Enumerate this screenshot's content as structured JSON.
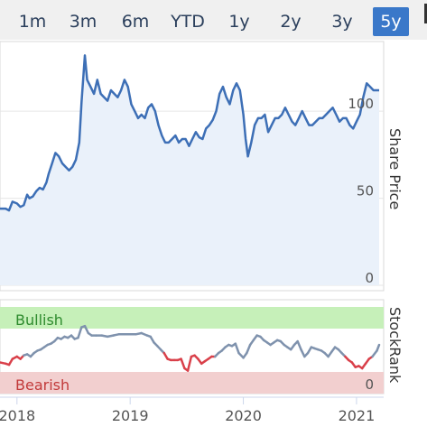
{
  "range_selector": {
    "buttons": [
      "1m",
      "3m",
      "6m",
      "YTD",
      "1y",
      "2y",
      "3y",
      "5y"
    ],
    "active": "5y"
  },
  "chart_data": [
    {
      "type": "line",
      "title": "",
      "ylabel": "Share Price",
      "ylim": [
        0,
        140
      ],
      "yticks": [
        0,
        50,
        100
      ],
      "xlim": [
        2017.85,
        2021.2
      ],
      "grid": true,
      "series": [
        {
          "color": "#3d6fb6",
          "points": [
            [
              2017.85,
              44
            ],
            [
              2017.9,
              44
            ],
            [
              2017.93,
              43
            ],
            [
              2017.96,
              48
            ],
            [
              2018.0,
              47
            ],
            [
              2018.03,
              45
            ],
            [
              2018.06,
              46
            ],
            [
              2018.09,
              52
            ],
            [
              2018.11,
              50
            ],
            [
              2018.14,
              51
            ],
            [
              2018.17,
              54
            ],
            [
              2018.2,
              56
            ],
            [
              2018.23,
              55
            ],
            [
              2018.26,
              59
            ],
            [
              2018.28,
              64
            ],
            [
              2018.31,
              70
            ],
            [
              2018.34,
              76
            ],
            [
              2018.37,
              74
            ],
            [
              2018.4,
              70
            ],
            [
              2018.43,
              68
            ],
            [
              2018.46,
              66
            ],
            [
              2018.49,
              68
            ],
            [
              2018.52,
              72
            ],
            [
              2018.55,
              82
            ],
            [
              2018.57,
              105
            ],
            [
              2018.6,
              132
            ],
            [
              2018.62,
              118
            ],
            [
              2018.65,
              114
            ],
            [
              2018.68,
              110
            ],
            [
              2018.71,
              118
            ],
            [
              2018.74,
              110
            ],
            [
              2018.77,
              108
            ],
            [
              2018.8,
              106
            ],
            [
              2018.83,
              112
            ],
            [
              2018.86,
              110
            ],
            [
              2018.89,
              108
            ],
            [
              2018.92,
              112
            ],
            [
              2018.95,
              118
            ],
            [
              2018.98,
              114
            ],
            [
              2019.01,
              104
            ],
            [
              2019.04,
              100
            ],
            [
              2019.07,
              96
            ],
            [
              2019.1,
              98
            ],
            [
              2019.13,
              96
            ],
            [
              2019.16,
              102
            ],
            [
              2019.19,
              104
            ],
            [
              2019.22,
              100
            ],
            [
              2019.25,
              92
            ],
            [
              2019.28,
              86
            ],
            [
              2019.31,
              82
            ],
            [
              2019.34,
              82
            ],
            [
              2019.37,
              84
            ],
            [
              2019.4,
              86
            ],
            [
              2019.43,
              82
            ],
            [
              2019.46,
              84
            ],
            [
              2019.49,
              84
            ],
            [
              2019.52,
              80
            ],
            [
              2019.55,
              84
            ],
            [
              2019.58,
              88
            ],
            [
              2019.61,
              85
            ],
            [
              2019.64,
              84
            ],
            [
              2019.67,
              90
            ],
            [
              2019.7,
              92
            ],
            [
              2019.73,
              95
            ],
            [
              2019.76,
              100
            ],
            [
              2019.79,
              110
            ],
            [
              2019.82,
              114
            ],
            [
              2019.85,
              108
            ],
            [
              2019.88,
              104
            ],
            [
              2019.91,
              112
            ],
            [
              2019.94,
              116
            ],
            [
              2019.97,
              112
            ],
            [
              2020.0,
              98
            ],
            [
              2020.02,
              84
            ],
            [
              2020.04,
              74
            ],
            [
              2020.07,
              82
            ],
            [
              2020.1,
              92
            ],
            [
              2020.13,
              96
            ],
            [
              2020.16,
              96
            ],
            [
              2020.19,
              98
            ],
            [
              2020.22,
              88
            ],
            [
              2020.25,
              92
            ],
            [
              2020.28,
              96
            ],
            [
              2020.31,
              96
            ],
            [
              2020.34,
              98
            ],
            [
              2020.37,
              102
            ],
            [
              2020.4,
              98
            ],
            [
              2020.43,
              94
            ],
            [
              2020.46,
              92
            ],
            [
              2020.49,
              96
            ],
            [
              2020.52,
              100
            ],
            [
              2020.55,
              96
            ],
            [
              2020.58,
              92
            ],
            [
              2020.61,
              92
            ],
            [
              2020.64,
              94
            ],
            [
              2020.67,
              96
            ],
            [
              2020.7,
              96
            ],
            [
              2020.73,
              98
            ],
            [
              2020.76,
              100
            ],
            [
              2020.79,
              102
            ],
            [
              2020.82,
              98
            ],
            [
              2020.85,
              94
            ],
            [
              2020.88,
              96
            ],
            [
              2020.91,
              96
            ],
            [
              2020.94,
              92
            ],
            [
              2020.97,
              90
            ],
            [
              2021.0,
              94
            ],
            [
              2021.03,
              98
            ],
            [
              2021.06,
              108
            ],
            [
              2021.09,
              116
            ],
            [
              2021.12,
              114
            ],
            [
              2021.15,
              112
            ],
            [
              2021.2,
              112
            ]
          ]
        }
      ]
    },
    {
      "type": "line",
      "title": "",
      "ylabel": "StockRank",
      "ylim": [
        0,
        100
      ],
      "yticks": [
        0
      ],
      "xlim": [
        2017.85,
        2021.2
      ],
      "xticks": [
        "2018",
        "2019",
        "2020",
        "2021"
      ],
      "bands": [
        {
          "label": "Bullish",
          "range": [
            70,
            100
          ],
          "color": "#c6f0b9",
          "label_color": "#2e8b2e"
        },
        {
          "label": "Bearish",
          "range": [
            0,
            30
          ],
          "color": "#f2cfcf",
          "label_color": "#c23a3a"
        }
      ],
      "series": [
        {
          "points": [
            [
              2017.85,
              25
            ],
            [
              2017.9,
              24
            ],
            [
              2017.93,
              23
            ],
            [
              2017.96,
              28
            ],
            [
              2018.0,
              30
            ],
            [
              2018.03,
              28
            ],
            [
              2018.06,
              31
            ],
            [
              2018.09,
              32
            ],
            [
              2018.12,
              30
            ],
            [
              2018.15,
              33
            ],
            [
              2018.18,
              35
            ],
            [
              2018.21,
              36
            ],
            [
              2018.24,
              38
            ],
            [
              2018.27,
              40
            ],
            [
              2018.3,
              41
            ],
            [
              2018.33,
              43
            ],
            [
              2018.36,
              46
            ],
            [
              2018.39,
              45
            ],
            [
              2018.42,
              47
            ],
            [
              2018.45,
              46
            ],
            [
              2018.48,
              48
            ],
            [
              2018.51,
              45
            ],
            [
              2018.54,
              46
            ],
            [
              2018.57,
              55
            ],
            [
              2018.6,
              56
            ],
            [
              2018.63,
              50
            ],
            [
              2018.66,
              48
            ],
            [
              2018.7,
              48
            ],
            [
              2018.75,
              48
            ],
            [
              2018.8,
              47
            ],
            [
              2018.85,
              48
            ],
            [
              2018.9,
              49
            ],
            [
              2018.95,
              49
            ],
            [
              2019.0,
              49
            ],
            [
              2019.05,
              49
            ],
            [
              2019.1,
              50
            ],
            [
              2019.15,
              48
            ],
            [
              2019.18,
              47
            ],
            [
              2019.21,
              42
            ],
            [
              2019.24,
              39
            ],
            [
              2019.27,
              36
            ],
            [
              2019.3,
              33
            ],
            [
              2019.33,
              28
            ],
            [
              2019.36,
              27
            ],
            [
              2019.39,
              27
            ],
            [
              2019.42,
              27
            ],
            [
              2019.45,
              28
            ],
            [
              2019.48,
              20
            ],
            [
              2019.51,
              18
            ],
            [
              2019.54,
              30
            ],
            [
              2019.57,
              31
            ],
            [
              2019.6,
              28
            ],
            [
              2019.63,
              24
            ],
            [
              2019.66,
              26
            ],
            [
              2019.69,
              28
            ],
            [
              2019.72,
              30
            ],
            [
              2019.75,
              30
            ],
            [
              2019.78,
              33
            ],
            [
              2019.81,
              35
            ],
            [
              2019.84,
              38
            ],
            [
              2019.87,
              40
            ],
            [
              2019.9,
              39
            ],
            [
              2019.93,
              41
            ],
            [
              2019.96,
              33
            ],
            [
              2020.0,
              29
            ],
            [
              2020.03,
              33
            ],
            [
              2020.06,
              40
            ],
            [
              2020.09,
              44
            ],
            [
              2020.12,
              48
            ],
            [
              2020.15,
              47
            ],
            [
              2020.18,
              44
            ],
            [
              2020.21,
              42
            ],
            [
              2020.24,
              40
            ],
            [
              2020.27,
              42
            ],
            [
              2020.3,
              44
            ],
            [
              2020.33,
              43
            ],
            [
              2020.36,
              40
            ],
            [
              2020.39,
              38
            ],
            [
              2020.42,
              36
            ],
            [
              2020.45,
              40
            ],
            [
              2020.48,
              43
            ],
            [
              2020.51,
              36
            ],
            [
              2020.54,
              30
            ],
            [
              2020.57,
              33
            ],
            [
              2020.6,
              38
            ],
            [
              2020.63,
              37
            ],
            [
              2020.66,
              36
            ],
            [
              2020.69,
              35
            ],
            [
              2020.72,
              33
            ],
            [
              2020.75,
              30
            ],
            [
              2020.78,
              34
            ],
            [
              2020.81,
              38
            ],
            [
              2020.84,
              36
            ],
            [
              2020.87,
              33
            ],
            [
              2020.9,
              30
            ],
            [
              2020.93,
              27
            ],
            [
              2020.96,
              25
            ],
            [
              2020.99,
              21
            ],
            [
              2021.02,
              22
            ],
            [
              2021.05,
              20
            ],
            [
              2021.08,
              24
            ],
            [
              2021.11,
              28
            ],
            [
              2021.14,
              30
            ],
            [
              2021.18,
              35
            ],
            [
              2021.2,
              40
            ]
          ]
        }
      ]
    }
  ]
}
